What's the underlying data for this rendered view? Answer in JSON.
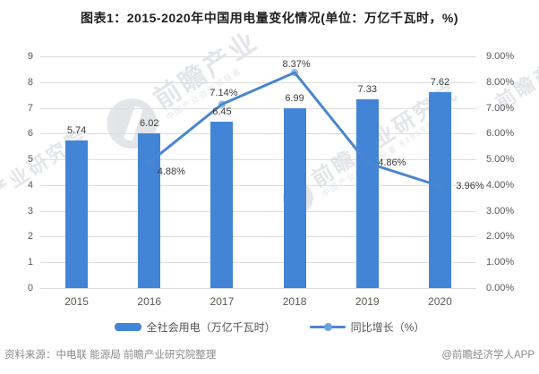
{
  "title": "图表1：2015-2020年中国用电量变化情况(单位：万亿千瓦时，%)",
  "chart_data": {
    "type": "combo",
    "categories": [
      "2015",
      "2016",
      "2017",
      "2018",
      "2019",
      "2020"
    ],
    "series": [
      {
        "name": "全社会用电（万亿千瓦时）",
        "type": "bar",
        "axis": "left",
        "color": "#4285d6",
        "values": [
          5.74,
          6.02,
          6.45,
          6.99,
          7.33,
          7.62
        ]
      },
      {
        "name": "同比增长（%）",
        "type": "line",
        "axis": "right",
        "color": "#4a86cf",
        "values": [
          null,
          4.88,
          7.14,
          8.37,
          4.86,
          3.96
        ]
      }
    ],
    "left_axis": {
      "min": 0,
      "max": 9,
      "ticks": [
        "9",
        "8",
        "7",
        "6",
        "5",
        "4",
        "3",
        "2",
        "1",
        "0"
      ]
    },
    "right_axis": {
      "min": 0,
      "max": 9,
      "ticks": [
        "9.00%",
        "8.00%",
        "7.00%",
        "6.00%",
        "5.00%",
        "4.00%",
        "3.00%",
        "2.00%",
        "1.00%",
        "0.00%"
      ]
    },
    "grid": true,
    "legend_position": "bottom"
  },
  "footer": {
    "source": "资料来源：中电联 能源局 前瞻产业研究院整理",
    "credit": "@前瞻经济学人APP"
  },
  "watermark": {
    "brand_full": "前瞻产业研究院",
    "brand_short": "前瞻产业",
    "tagline": "中国产业咨询领导者",
    "code": "839599"
  },
  "colors": {
    "bar": "#4285d6",
    "line": "#4a86cf",
    "grid": "#dcdee1",
    "tick_text": "#595959",
    "data_label": "#3c3c3c",
    "title_text": "#1f1f1f",
    "footer_text": "#8b8b8b"
  }
}
